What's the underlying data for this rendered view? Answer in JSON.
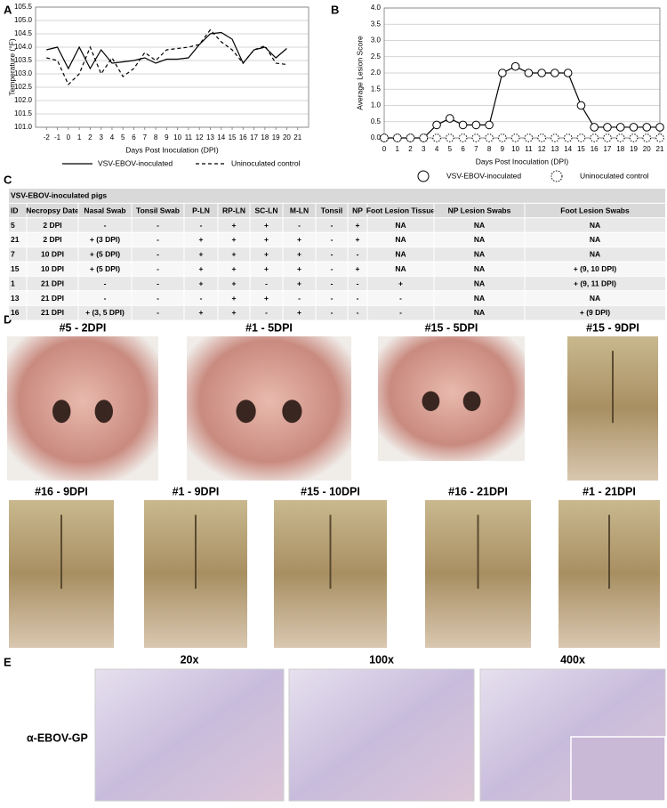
{
  "panels": [
    "A",
    "B",
    "C",
    "D",
    "E"
  ],
  "chart_data": [
    {
      "type": "line",
      "ylabel": "Temperature (°F)",
      "xlabel": "Days Post Inoculation (DPI)",
      "x": [
        -2,
        -1,
        0,
        1,
        2,
        3,
        4,
        5,
        6,
        7,
        8,
        9,
        10,
        11,
        12,
        13,
        14,
        15,
        16,
        17,
        18,
        19,
        20,
        21
      ],
      "xlim": [
        -3,
        22
      ],
      "xticks": [
        -2,
        -1,
        0,
        1,
        2,
        3,
        4,
        5,
        6,
        7,
        8,
        9,
        10,
        11,
        12,
        13,
        14,
        15,
        16,
        17,
        18,
        19,
        20,
        21
      ],
      "ylim": [
        101,
        105.5
      ],
      "yticks": [
        {
          "value": 101,
          "label": "101.0"
        },
        101.5,
        {
          "value": 102,
          "label": "102.0"
        },
        102.5,
        {
          "value": 103,
          "label": "103.0"
        },
        103.5,
        {
          "value": 104,
          "label": "104.0"
        },
        104.5,
        {
          "value": 105,
          "label": "105.0"
        },
        105.5
      ],
      "grid": true,
      "legend": "bottom",
      "series": [
        {
          "name": "VSV-EBOV-inoculated",
          "color": "#000000",
          "line_style": "solid",
          "marker": "none",
          "values": [
            103.9,
            104.0,
            103.2,
            104.0,
            103.2,
            103.9,
            103.4,
            103.45,
            103.5,
            103.6,
            103.4,
            103.55,
            103.55,
            103.6,
            104.1,
            104.5,
            104.55,
            104.3,
            103.4,
            103.9,
            104.0,
            103.6,
            103.95,
            null
          ]
        },
        {
          "name": "Uninoculated control",
          "color": "#000000",
          "line_style": "dashed",
          "marker": "none",
          "values": [
            103.6,
            103.5,
            102.6,
            103.0,
            104.0,
            103.0,
            103.6,
            102.9,
            103.2,
            103.8,
            103.5,
            103.9,
            103.95,
            104.0,
            104.1,
            104.65,
            104.2,
            103.9,
            103.4,
            103.9,
            104.05,
            103.4,
            103.35,
            null
          ]
        }
      ]
    },
    {
      "type": "line",
      "ylabel": "Average Lesion Score",
      "xlabel": "Days Post Inoculation (DPI)",
      "x": [
        0,
        1,
        2,
        3,
        4,
        5,
        6,
        7,
        8,
        9,
        10,
        11,
        12,
        13,
        14,
        15,
        16,
        17,
        18,
        19,
        20,
        21
      ],
      "xlim": [
        0,
        21
      ],
      "xticks": [
        0,
        1,
        2,
        3,
        4,
        5,
        6,
        7,
        8,
        9,
        10,
        11,
        12,
        13,
        14,
        15,
        16,
        17,
        18,
        19,
        20,
        21
      ],
      "ylim": [
        0,
        4
      ],
      "yticks": [
        {
          "value": 0,
          "label": "0.0"
        },
        0.5,
        {
          "value": 1,
          "label": "1.0"
        },
        1.5,
        {
          "value": 2,
          "label": "2.0"
        },
        2.5,
        {
          "value": 3,
          "label": "3.0"
        },
        3.5,
        {
          "value": 4,
          "label": "4.0"
        }
      ],
      "grid": true,
      "legend": "bottom",
      "series": [
        {
          "name": "VSV-EBOV-inoculated",
          "color": "#000000",
          "line_style": "solid",
          "marker": "circle",
          "values": [
            0,
            0,
            0,
            0,
            0.4,
            0.6,
            0.4,
            0.4,
            0.4,
            2.0,
            2.2,
            2.0,
            2.0,
            2.0,
            2.0,
            1.0,
            0.33,
            0.33,
            0.33,
            0.33,
            0.33,
            0.33
          ]
        },
        {
          "name": "Uninoculated control",
          "color": "#000000",
          "line_style": "dashed",
          "marker": "dashed-circle",
          "values": [
            0,
            0,
            0,
            0,
            0,
            0,
            0,
            0,
            0,
            0,
            0,
            0,
            0,
            0,
            0,
            0,
            0,
            0,
            0,
            0,
            0,
            0
          ]
        }
      ]
    }
  ],
  "table": {
    "title": "VSV-EBOV-inoculated pigs",
    "header": [
      "ID",
      "Necropsy Date",
      "Nasal Swab",
      "Tonsil Swab",
      "P-LN",
      "RP-LN",
      "SC-LN",
      "M-LN",
      "Tonsil",
      "NP",
      "Foot Lesion Tissue",
      "NP Lesion Swabs",
      "Foot Lesion Swabs"
    ],
    "rows": [
      [
        "5",
        "2 DPI",
        "-",
        "-",
        "-",
        "+",
        "+",
        "-",
        "-",
        "+",
        "NA",
        "NA",
        "NA"
      ],
      [
        "21",
        "2 DPI",
        "+ (3 DPI)",
        "-",
        "+",
        "+",
        "+",
        "+",
        "-",
        "+",
        "NA",
        "NA",
        "NA"
      ],
      [
        "7",
        "10 DPI",
        "+ (5 DPI)",
        "-",
        "+",
        "+",
        "+",
        "+",
        "-",
        "-",
        "NA",
        "NA",
        "NA"
      ],
      [
        "15",
        "10 DPI",
        "+ (5 DPI)",
        "-",
        "+",
        "+",
        "+",
        "+",
        "-",
        "+",
        "NA",
        "NA",
        "+ (9, 10 DPI)"
      ],
      [
        "1",
        "21 DPI",
        "-",
        "-",
        "+",
        "+",
        "-",
        "+",
        "-",
        "-",
        "+",
        "NA",
        "+ (9, 11 DPI)"
      ],
      [
        "13",
        "21 DPI",
        "-",
        "-",
        "-",
        "+",
        "+",
        "-",
        "-",
        "-",
        "-",
        "NA",
        "NA"
      ],
      [
        "16",
        "21 DPI",
        "+ (3, 5 DPI)",
        "-",
        "+",
        "+",
        "-",
        "+",
        "-",
        "-",
        "-",
        "NA",
        "+ (9 DPI)"
      ]
    ]
  },
  "photos": [
    "#5 - 2DPI",
    "#1 - 5DPI",
    "#15 - 5DPI",
    "#15 - 9DPI",
    "#16 - 9DPI",
    "#1 - 9DPI",
    "#15 - 10DPI",
    "#16 - 21DPI",
    "#1 - 21DPI"
  ],
  "histology": {
    "stain": "α-EBOV-GP",
    "magnifications": [
      "20x",
      "100x",
      "400x"
    ]
  }
}
